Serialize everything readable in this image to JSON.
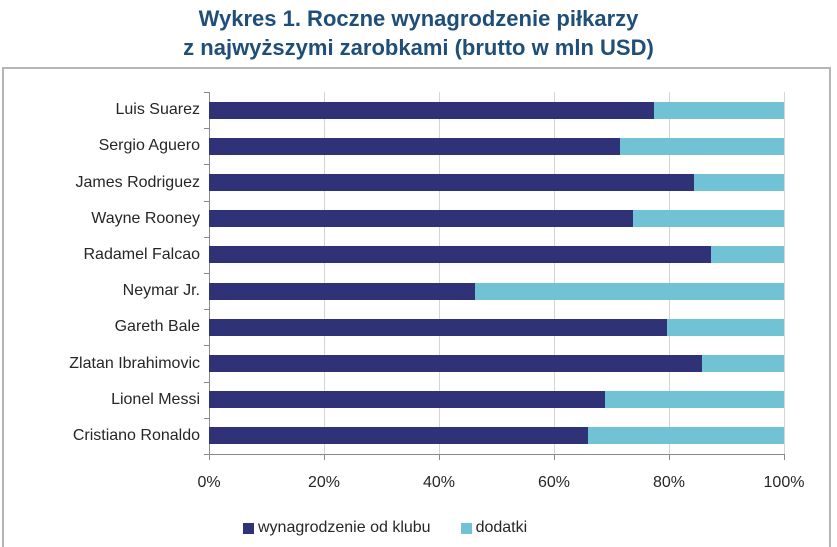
{
  "chart_data": {
    "type": "bar",
    "orientation": "horizontal",
    "stacked": "percent",
    "title": "Wykres 1. Roczne wynagrodzenie piłkarzy z najwyższymi zarobkami (brutto w mln USD)",
    "title_lines": [
      "Wykres 1. Roczne wynagrodzenie piłkarzy",
      "z najwyższymi zarobkami (brutto w mln USD)"
    ],
    "xlabel": "",
    "ylabel": "",
    "xlim": [
      0,
      100
    ],
    "x_ticks": [
      "0%",
      "20%",
      "40%",
      "60%",
      "80%",
      "100%"
    ],
    "grid": true,
    "legend_position": "bottom",
    "categories": [
      "Luis Suarez",
      "Sergio Aguero",
      "James Rodriguez",
      "Wayne Rooney",
      "Radamel Falcao",
      "Neymar Jr.",
      "Gareth Bale",
      "Zlatan Ibrahimovic",
      "Lionel Messi",
      "Cristiano Ronaldo"
    ],
    "series": [
      {
        "name": "wynagrodzenie od klubu",
        "color": "#2f3277",
        "values": [
          77.4,
          71.5,
          84.3,
          73.7,
          87.3,
          46.3,
          79.7,
          85.7,
          68.9,
          65.9
        ]
      },
      {
        "name": "dodatki",
        "color": "#72c2d5",
        "values": [
          22.6,
          28.5,
          15.7,
          26.3,
          12.7,
          53.7,
          20.3,
          14.3,
          31.1,
          34.1
        ]
      }
    ]
  }
}
